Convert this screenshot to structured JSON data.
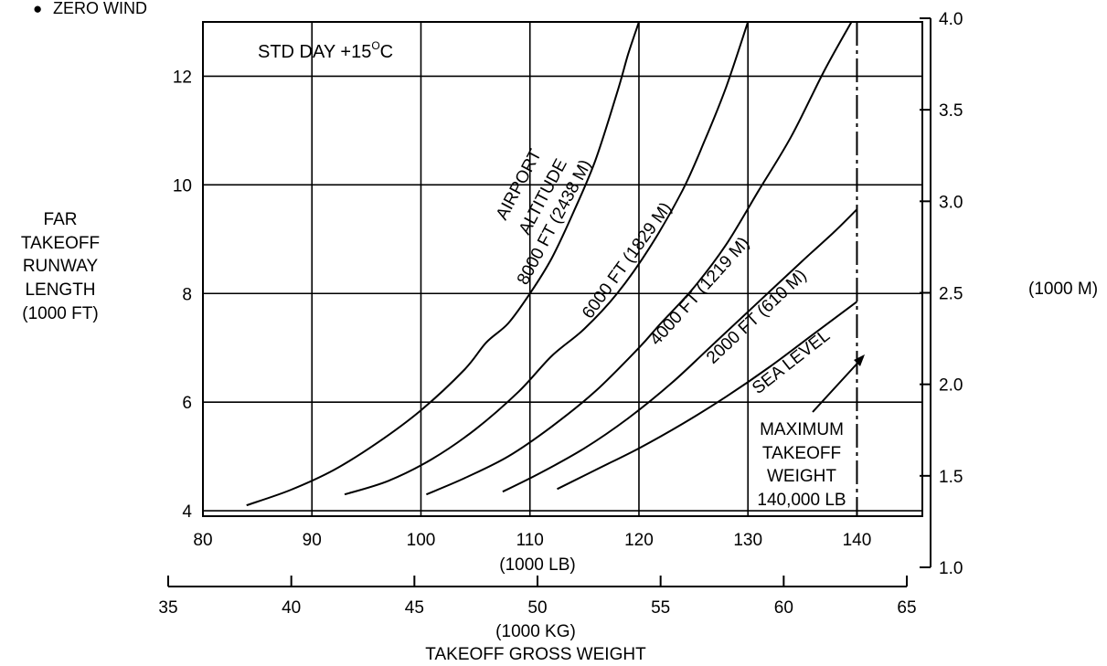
{
  "chart_data": {
    "type": "line",
    "condition_note": "ZERO WIND",
    "condition_bullet": "●",
    "std_day_label": "STD DAY +15",
    "std_day_unit": "C",
    "std_day_degree": "O",
    "y_axis_title": [
      "FAR",
      "TAKEOFF",
      "RUNWAY",
      "LENGTH",
      "(1000 FT)"
    ],
    "y_ticks": [
      "4",
      "6",
      "8",
      "10",
      "12"
    ],
    "y2_unit_label": "(1000 M)",
    "y2_ticks": [
      "1.0",
      "1.5",
      "2.0",
      "2.5",
      "3.0",
      "3.5",
      "4.0"
    ],
    "x_ticks": [
      "80",
      "90",
      "100",
      "110",
      "120",
      "130",
      "140"
    ],
    "x_unit_label": "(1000 LB)",
    "x2_ticks": [
      "35",
      "40",
      "45",
      "50",
      "55",
      "60",
      "65"
    ],
    "x2_unit_label": "(1000 KG)",
    "x_axis_title": "TAKEOFF GROSS WEIGHT",
    "xlim": [
      80,
      146
    ],
    "ylim": [
      3.9,
      13
    ],
    "y2lim": [
      1.0,
      4.0
    ],
    "x2lim": [
      35,
      65
    ],
    "max_weight_line_x": 140,
    "max_weight_label": [
      "MAXIMUM",
      "TAKEOFF",
      "WEIGHT",
      "140,000 LB"
    ],
    "series": [
      {
        "name": "AIRPORT ALTITUDE 8000 FT (2438 M)",
        "x": [
          84,
          88,
          92,
          96,
          100,
          104,
          106,
          108,
          110,
          112,
          114,
          116,
          118,
          119,
          120
        ],
        "y": [
          4.1,
          4.38,
          4.75,
          5.25,
          5.85,
          6.6,
          7.1,
          7.45,
          8.0,
          8.65,
          9.5,
          10.45,
          11.7,
          12.4,
          13.0
        ]
      },
      {
        "name": "6000 FT (1829 M)",
        "x": [
          93,
          97,
          101,
          105,
          109,
          112,
          115,
          118,
          121,
          124,
          126,
          128,
          130
        ],
        "y": [
          4.3,
          4.55,
          4.95,
          5.5,
          6.2,
          6.85,
          7.35,
          8.0,
          8.85,
          9.9,
          10.8,
          11.8,
          13.0
        ]
      },
      {
        "name": "4000 FT (1219 M)",
        "x": [
          100.5,
          104,
          108,
          112,
          116,
          120,
          122,
          125,
          128,
          131,
          134,
          137,
          139.5
        ],
        "y": [
          4.3,
          4.6,
          5.0,
          5.55,
          6.2,
          7.0,
          7.45,
          8.1,
          8.9,
          9.9,
          10.9,
          12.1,
          13.0
        ]
      },
      {
        "name": "2000 FT (610 M)",
        "x": [
          107.5,
          111,
          115,
          119,
          123,
          127,
          131,
          135,
          138,
          140
        ],
        "y": [
          4.35,
          4.7,
          5.15,
          5.7,
          6.35,
          7.1,
          7.85,
          8.6,
          9.15,
          9.55
        ]
      },
      {
        "name": "SEA LEVEL",
        "x": [
          112.5,
          116,
          120,
          124,
          128,
          132,
          136,
          140
        ],
        "y": [
          4.4,
          4.75,
          5.15,
          5.6,
          6.1,
          6.65,
          7.25,
          7.85
        ]
      }
    ],
    "curve_labels": {
      "airport": "AIRPORT",
      "altitude": "ALTITUDE",
      "alt8000": "8000 FT (2438 M)",
      "alt6000": "6000 FT (1829 M)",
      "alt4000": "4000 FT (1219 M)",
      "alt2000": "2000 FT (610 M)",
      "sea": "SEA LEVEL"
    }
  }
}
